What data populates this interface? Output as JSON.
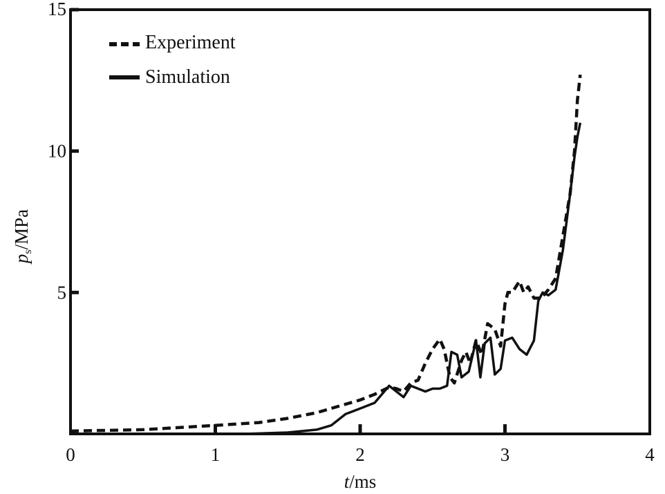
{
  "chart_data": {
    "type": "line",
    "title": "",
    "xlabel": "t/ms",
    "ylabel": "ps/MPa",
    "xlim": [
      0,
      4
    ],
    "ylim": [
      0,
      15
    ],
    "x_ticks": [
      0,
      1,
      2,
      3,
      4
    ],
    "y_ticks": [
      5,
      10,
      15
    ],
    "x_tick_labels": [
      "0",
      "1",
      "2",
      "3",
      "4"
    ],
    "y_tick_labels": [
      "5",
      "10",
      "15"
    ],
    "grid": false,
    "legend_position": "top-left",
    "series": [
      {
        "name": "Experiment",
        "style": "dashed",
        "x": [
          0,
          0.5,
          1.0,
          1.3,
          1.5,
          1.7,
          1.9,
          2.0,
          2.1,
          2.2,
          2.25,
          2.3,
          2.35,
          2.4,
          2.45,
          2.5,
          2.55,
          2.58,
          2.62,
          2.65,
          2.7,
          2.73,
          2.76,
          2.8,
          2.84,
          2.88,
          2.93,
          2.97,
          3.0,
          3.02,
          3.05,
          3.1,
          3.13,
          3.16,
          3.2,
          3.25,
          3.3,
          3.35,
          3.4,
          3.45,
          3.48,
          3.5,
          3.52
        ],
        "y": [
          0.1,
          0.15,
          0.3,
          0.4,
          0.55,
          0.75,
          1.05,
          1.2,
          1.4,
          1.65,
          1.6,
          1.5,
          1.8,
          1.9,
          2.5,
          3.0,
          3.35,
          3.0,
          2.0,
          1.8,
          2.6,
          2.9,
          2.5,
          3.3,
          2.8,
          3.9,
          3.7,
          3.1,
          4.6,
          5.0,
          5.0,
          5.4,
          5.0,
          5.2,
          4.8,
          4.8,
          5.1,
          5.5,
          7.0,
          8.5,
          10.0,
          11.8,
          12.7
        ]
      },
      {
        "name": "Simulation",
        "style": "solid",
        "x": [
          0,
          0.5,
          1.0,
          1.2,
          1.5,
          1.7,
          1.8,
          1.9,
          2.0,
          2.1,
          2.15,
          2.2,
          2.25,
          2.3,
          2.35,
          2.4,
          2.45,
          2.5,
          2.55,
          2.6,
          2.63,
          2.67,
          2.7,
          2.75,
          2.8,
          2.83,
          2.86,
          2.9,
          2.93,
          2.97,
          3.0,
          3.05,
          3.1,
          3.15,
          3.2,
          3.23,
          3.26,
          3.3,
          3.35,
          3.4,
          3.45,
          3.48,
          3.5,
          3.52
        ],
        "y": [
          0.0,
          0.0,
          0.0,
          0.0,
          0.05,
          0.15,
          0.3,
          0.7,
          0.9,
          1.1,
          1.4,
          1.7,
          1.5,
          1.3,
          1.7,
          1.6,
          1.5,
          1.6,
          1.6,
          1.7,
          2.9,
          2.8,
          2.0,
          2.2,
          3.3,
          2.0,
          3.2,
          3.4,
          2.1,
          2.3,
          3.3,
          3.4,
          3.0,
          2.8,
          3.3,
          4.7,
          5.0,
          4.9,
          5.1,
          6.5,
          8.5,
          9.8,
          10.5,
          11.0
        ]
      }
    ]
  }
}
